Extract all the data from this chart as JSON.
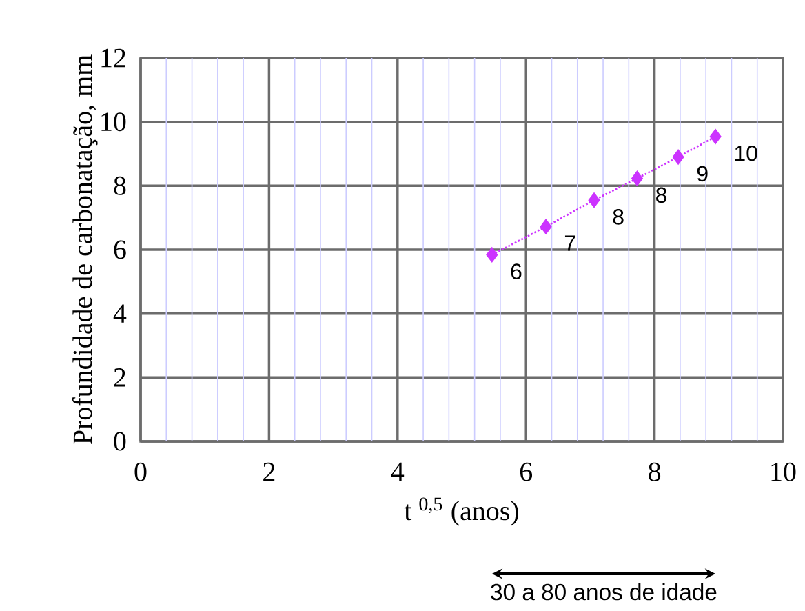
{
  "chart_data": {
    "type": "line",
    "xlabel": "t $^{0,5}$ (anos)",
    "ylabel": "Profundidade de carbonatação, mm",
    "x": [
      5.47,
      6.31,
      7.06,
      7.73,
      8.37,
      8.95
    ],
    "values": [
      5.84,
      6.72,
      7.55,
      8.23,
      8.9,
      9.54
    ],
    "value_labels": [
      "6",
      "7",
      "8",
      "8",
      "9",
      "10"
    ],
    "color": "#cc33ff",
    "marker": "diamond",
    "line_style": "dotted",
    "xlim": [
      0,
      10
    ],
    "ylim": [
      0,
      12
    ],
    "xticks": [
      0,
      {
        "value": 0.4,
        "label": null
      },
      {
        "value": 0.8,
        "label": null
      },
      {
        "value": 1.2,
        "label": null
      },
      {
        "value": 1.6,
        "label": null
      },
      2,
      {
        "value": 2.4,
        "label": null
      },
      {
        "value": 2.8,
        "label": null
      },
      {
        "value": 3.2,
        "label": null
      },
      {
        "value": 3.6,
        "label": null
      },
      4,
      {
        "value": 4.4,
        "label": null
      },
      {
        "value": 4.8,
        "label": null
      },
      {
        "value": 5.2,
        "label": null
      },
      {
        "value": 5.6,
        "label": null
      },
      6,
      {
        "value": 6.4,
        "label": null
      },
      {
        "value": 6.8,
        "label": null
      },
      {
        "value": 7.2,
        "label": null
      },
      {
        "value": 7.6,
        "label": null
      },
      8,
      {
        "value": 8.4,
        "label": null
      },
      {
        "value": 8.8,
        "label": null
      },
      {
        "value": 9.2,
        "label": null
      },
      {
        "value": 9.6,
        "label": null
      },
      10
    ],
    "yticks": [
      0,
      2,
      4,
      6,
      8,
      10,
      12
    ],
    "grid": true,
    "annotations": [
      "30 a 80 anos de idade"
    ]
  }
}
